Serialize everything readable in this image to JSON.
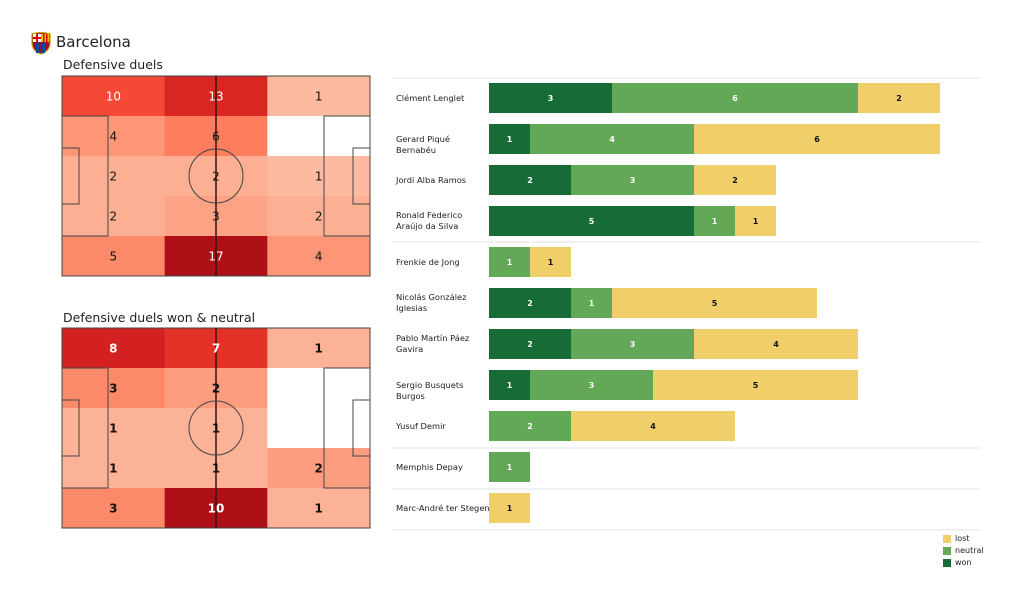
{
  "team": "Barcelona",
  "colors": {
    "won": "#176b37",
    "neutral": "#62a857",
    "lost": "#f0cf6b"
  },
  "chart_data": [
    {
      "type": "heatmap",
      "title": "Defensive duels",
      "rows": 5,
      "cols": 3,
      "values": [
        [
          10,
          13,
          1
        ],
        [
          4,
          6,
          0
        ],
        [
          2,
          2,
          1
        ],
        [
          2,
          3,
          2
        ],
        [
          5,
          17,
          4
        ]
      ],
      "colormap": "Reds",
      "bold_labels": false
    },
    {
      "type": "heatmap",
      "title": "Defensive duels won & neutral",
      "rows": 5,
      "cols": 3,
      "values": [
        [
          8,
          7,
          1
        ],
        [
          3,
          2,
          0
        ],
        [
          1,
          1,
          0
        ],
        [
          1,
          1,
          2
        ],
        [
          3,
          10,
          1
        ]
      ],
      "colormap": "Reds",
      "bold_labels": true
    },
    {
      "type": "bar",
      "orientation": "horizontal",
      "stacked": true,
      "categories": [
        "Clément Lenglet",
        "Gerard Piqué Bernabéu",
        "Jordi Alba Ramos",
        "Ronald Federico Araújo da Silva",
        "Frenkie de Jong",
        "Nicolás González Iglesias",
        "Pablo Martín Páez Gavira",
        "Sergio Busquets Burgos",
        "Yusuf Demir",
        "Memphis Depay",
        "Marc-André ter Stegen"
      ],
      "series": [
        {
          "name": "won",
          "values": [
            3,
            1,
            2,
            5,
            0,
            2,
            2,
            1,
            0,
            0,
            0
          ]
        },
        {
          "name": "neutral",
          "values": [
            6,
            4,
            3,
            1,
            1,
            1,
            3,
            3,
            2,
            1,
            0
          ]
        },
        {
          "name": "lost",
          "values": [
            2,
            6,
            2,
            1,
            1,
            5,
            4,
            5,
            4,
            0,
            1
          ]
        }
      ],
      "legend": {
        "position": "bottom-right",
        "entries": [
          "lost",
          "neutral",
          "won"
        ]
      }
    }
  ]
}
